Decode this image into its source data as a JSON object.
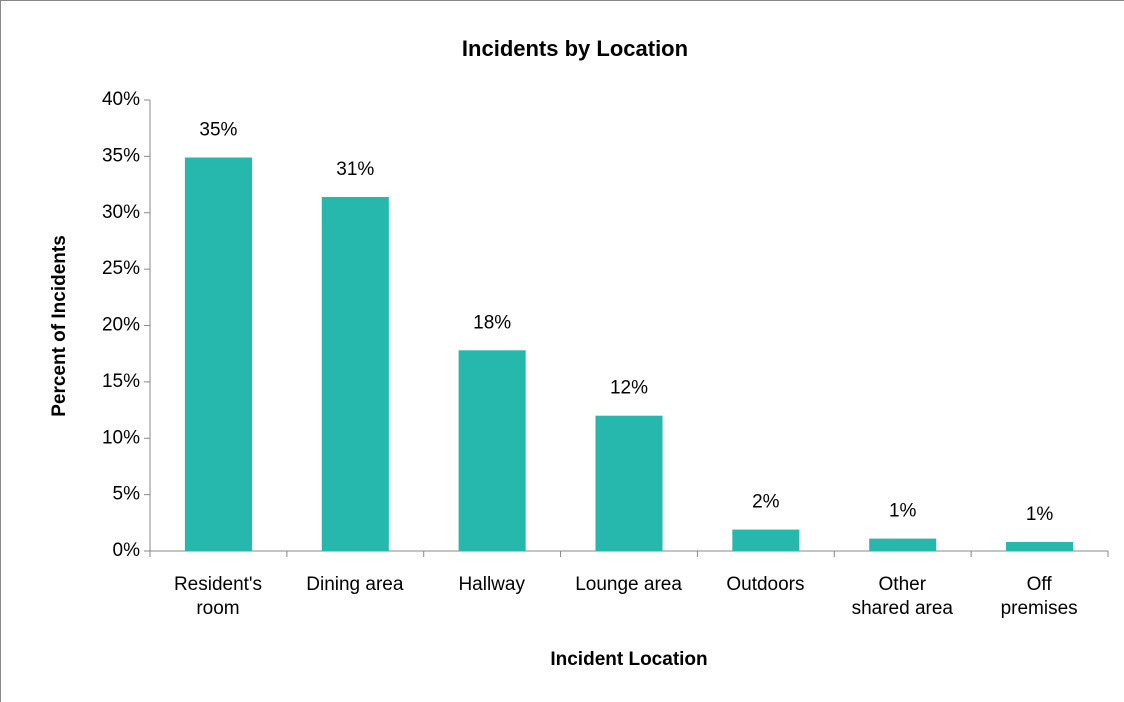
{
  "chart_data": {
    "type": "bar",
    "title": "Incidents by Location",
    "x_label": "Incident Location",
    "y_label": "Percent of Incidents",
    "categories": [
      "Resident's\nroom",
      "Dining area",
      "Hallway",
      "Lounge area",
      "Outdoors",
      "Other\nshared area",
      "Off\npremises"
    ],
    "values": [
      34.9,
      31.4,
      17.8,
      12.0,
      1.9,
      1.1,
      0.8
    ],
    "value_labels": [
      "35%",
      "31%",
      "18%",
      "12%",
      "2%",
      "1%",
      "1%"
    ],
    "color": "#26b8ad",
    "ylim": [
      0,
      40
    ],
    "yticks": [
      {
        "value": 0,
        "label": "0%"
      },
      {
        "value": 5,
        "label": "5%"
      },
      {
        "value": 10,
        "label": "10%"
      },
      {
        "value": 15,
        "label": "15%"
      },
      {
        "value": 20,
        "label": "20%"
      },
      {
        "value": 25,
        "label": "25%"
      },
      {
        "value": 30,
        "label": "30%"
      },
      {
        "value": 35,
        "label": "35%"
      },
      {
        "value": 40,
        "label": "40%"
      }
    ],
    "grid": false
  }
}
